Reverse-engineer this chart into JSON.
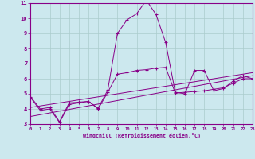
{
  "bg_color": "#cce8ee",
  "grid_color": "#aacccc",
  "line_color": "#880088",
  "xlabel": "Windchill (Refroidissement éolien,°C)",
  "xlim": [
    0,
    23
  ],
  "ylim": [
    3,
    11
  ],
  "yticks": [
    3,
    4,
    5,
    6,
    7,
    8,
    9,
    10,
    11
  ],
  "xticks": [
    0,
    1,
    2,
    3,
    4,
    5,
    6,
    7,
    8,
    9,
    10,
    11,
    12,
    13,
    14,
    15,
    16,
    17,
    18,
    19,
    20,
    21,
    22,
    23
  ],
  "line1_x": [
    0,
    1,
    2,
    3,
    4,
    5,
    6,
    7,
    8,
    9,
    10,
    11,
    12,
    13,
    14,
    15,
    16,
    17,
    18,
    19,
    20,
    21,
    22,
    23
  ],
  "line1_y": [
    4.8,
    4.0,
    4.1,
    3.15,
    4.4,
    4.45,
    4.5,
    4.05,
    5.25,
    9.0,
    9.9,
    10.3,
    11.2,
    10.25,
    8.4,
    5.1,
    5.0,
    6.55,
    6.55,
    5.2,
    5.35,
    5.85,
    6.2,
    6.0
  ],
  "line2_x": [
    0,
    1,
    2,
    3,
    4,
    5,
    6,
    7,
    8,
    9,
    10,
    11,
    12,
    13,
    14,
    15,
    16,
    17,
    18,
    19,
    20,
    21,
    22,
    23
  ],
  "line2_y": [
    4.75,
    3.9,
    4.0,
    3.1,
    4.3,
    4.4,
    4.5,
    4.0,
    5.1,
    6.3,
    6.4,
    6.55,
    6.6,
    6.7,
    6.75,
    5.05,
    5.1,
    5.15,
    5.2,
    5.3,
    5.4,
    5.7,
    6.0,
    6.0
  ],
  "line3_x": [
    0,
    23
  ],
  "line3_y": [
    3.5,
    6.2
  ],
  "line4_x": [
    0,
    23
  ],
  "line4_y": [
    4.1,
    6.4
  ]
}
